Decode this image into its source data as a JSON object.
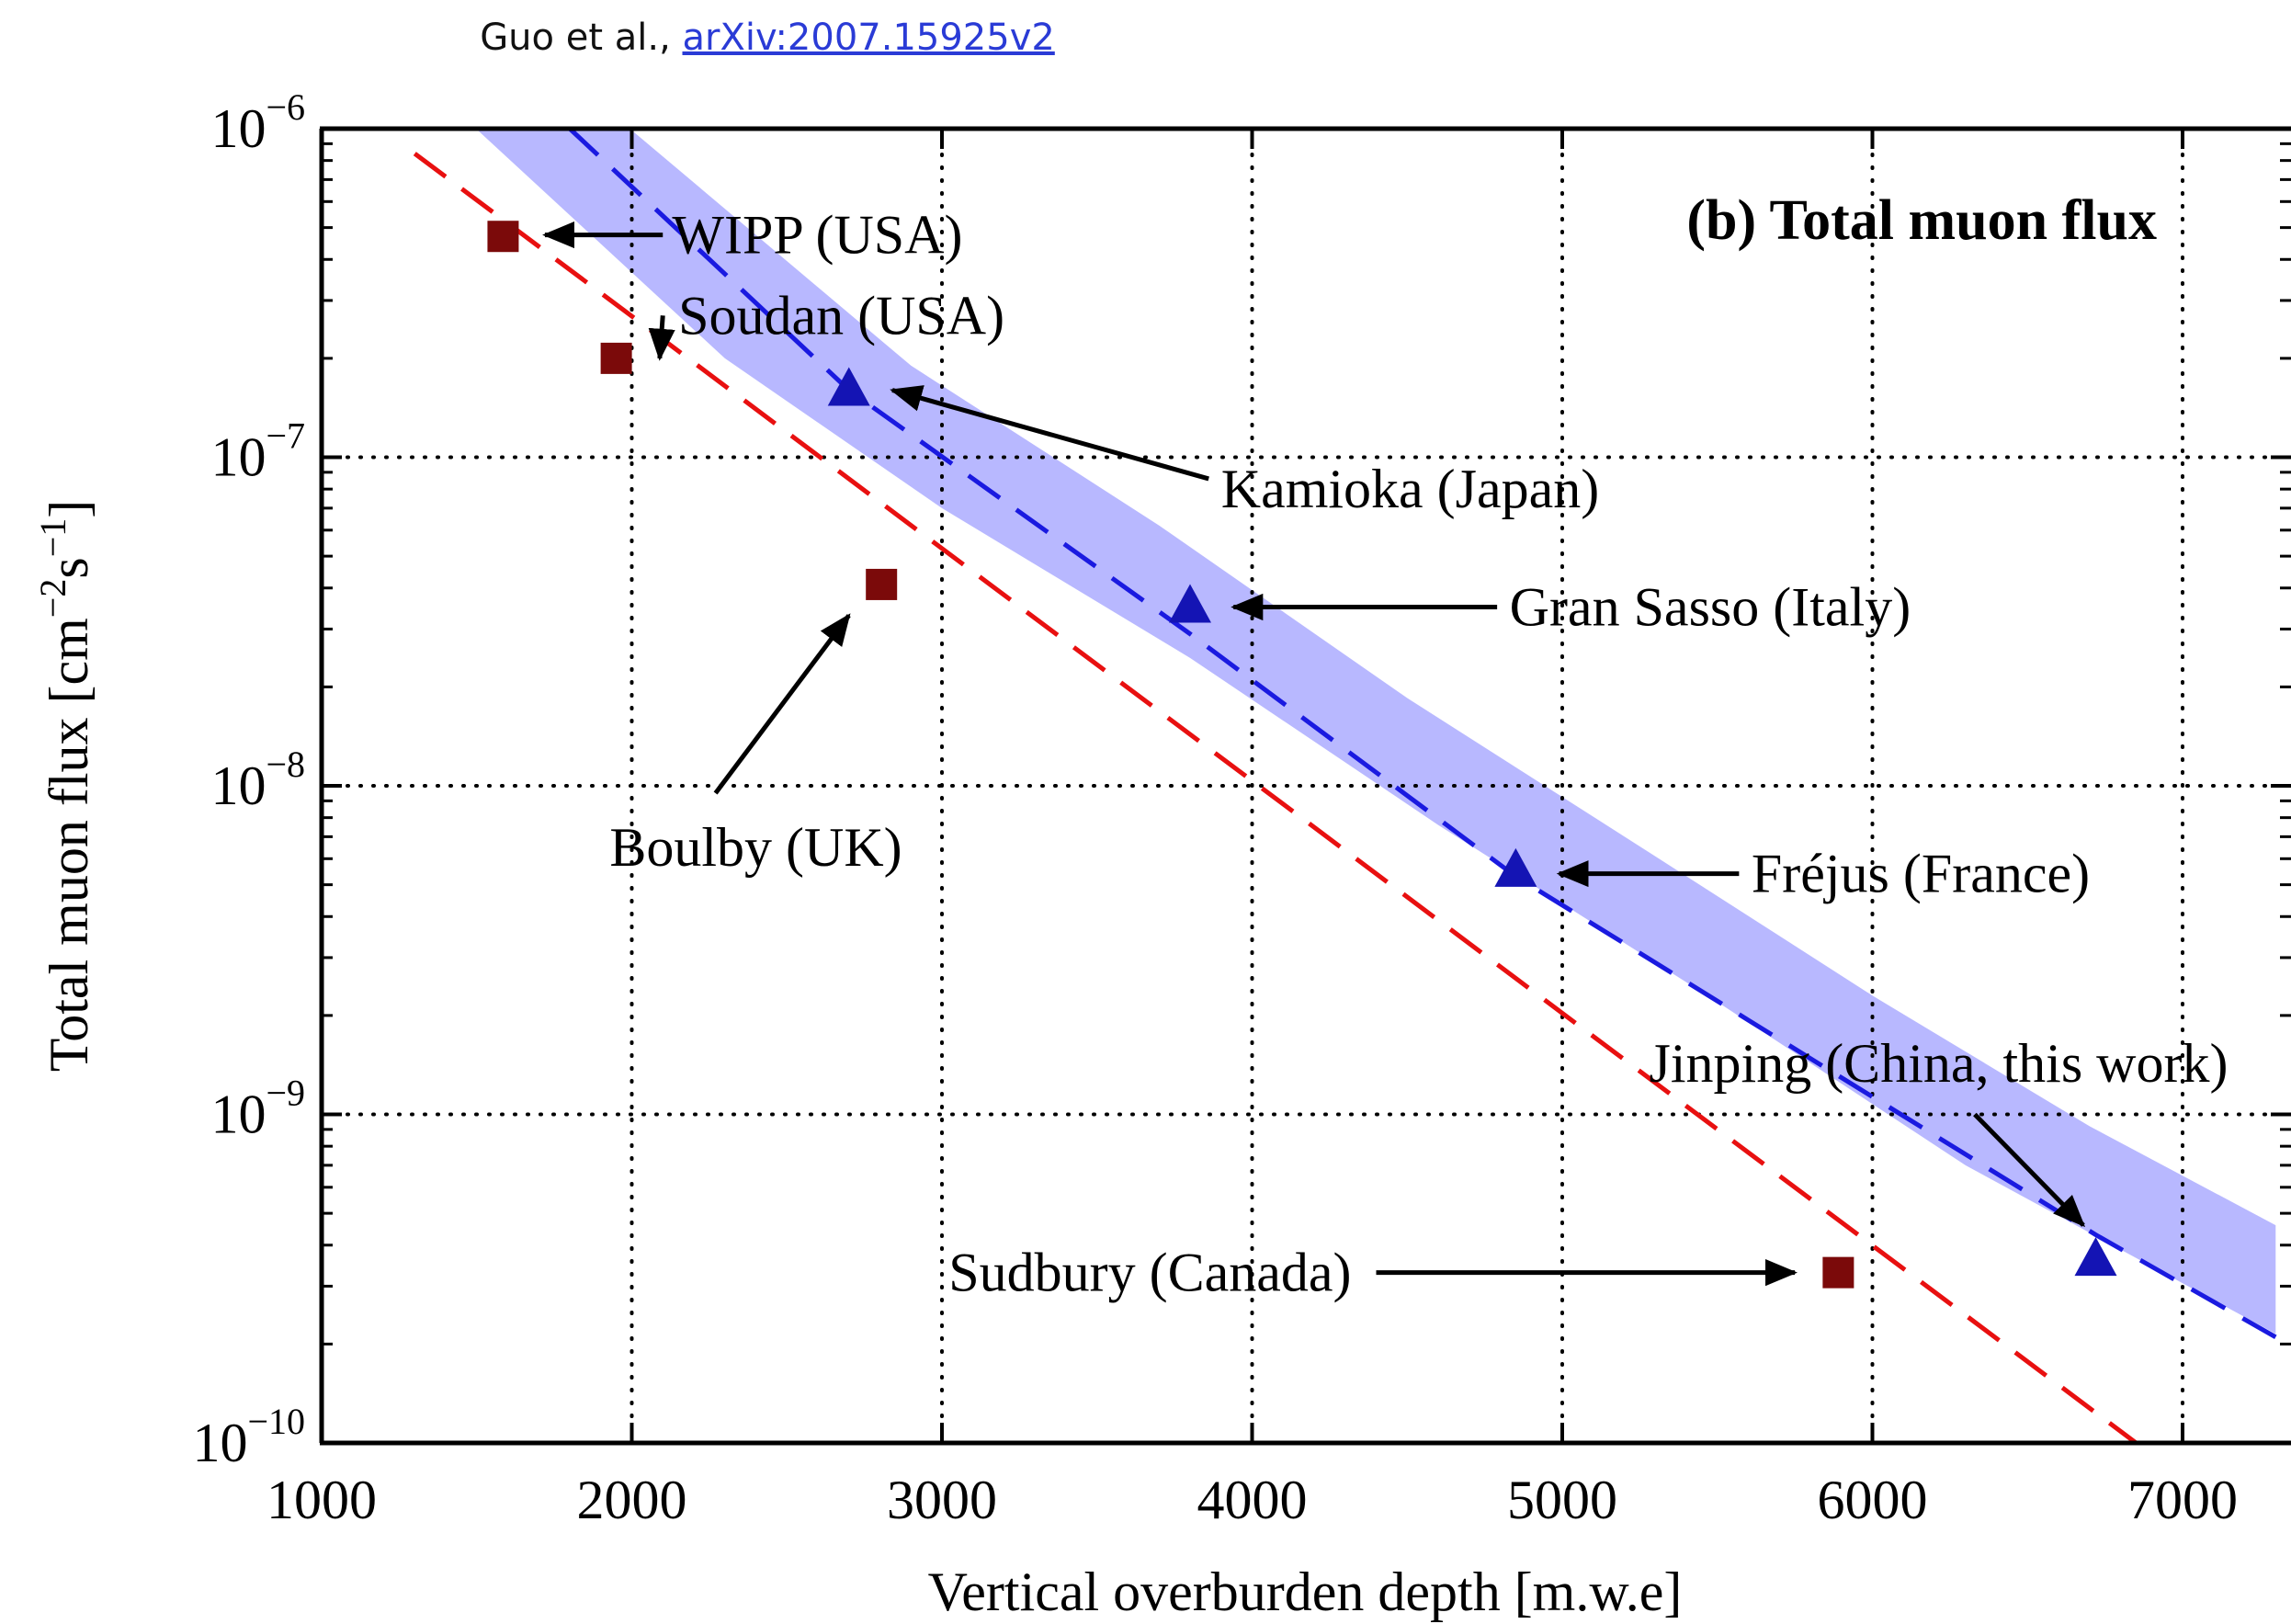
{
  "header": {
    "citation_prefix": "Guo et al., ",
    "citation_link": "arXiv:2007.15925v2"
  },
  "chart_data": {
    "type": "scatter",
    "title": "(b) Total muon flux",
    "xlabel": "Vertical overburden depth [m.w.e]",
    "ylabel_prefix": "Total muon flux [cm",
    "ylabel_exp1": "−2",
    "ylabel_mid": "s",
    "ylabel_exp2": "−1",
    "ylabel_suffix": "]",
    "xlim": [
      1000,
      7300
    ],
    "ylim": [
      1e-10,
      1e-06
    ],
    "yscale": "log",
    "grid": true,
    "x_ticks": [
      1000,
      2000,
      3000,
      4000,
      5000,
      6000,
      7000
    ],
    "x_tick_labels": [
      "1000",
      "2000",
      "3000",
      "4000",
      "5000",
      "6000",
      "7000"
    ],
    "y_ticks": [
      {
        "value": 1e-10,
        "base": "10",
        "exp": "−10"
      },
      {
        "value": 1e-09,
        "base": "10",
        "exp": "−9"
      },
      {
        "value": 1e-08,
        "base": "10",
        "exp": "−8"
      },
      {
        "value": 1e-07,
        "base": "10",
        "exp": "−7"
      },
      {
        "value": 1e-06,
        "base": "10",
        "exp": "−6"
      }
    ],
    "series": [
      {
        "marker": "square",
        "color": "#7b0a0a",
        "points": [
          {
            "label": "WIPP (USA)",
            "x": 1585,
            "y": 4.7e-07
          },
          {
            "label": "Soudan (USA)",
            "x": 1950,
            "y": 2e-07
          },
          {
            "label": "Boulby (UK)",
            "x": 2805,
            "y": 4.1e-08
          },
          {
            "label": "Sudbury (Canada)",
            "x": 5890,
            "y": 3.3e-10
          }
        ]
      },
      {
        "marker": "triangle",
        "color": "#1414b4",
        "points": [
          {
            "label": "Kamioka (Japan)",
            "x": 2700,
            "y": 1.6e-07
          },
          {
            "label": "Gran Sasso (Italy)",
            "x": 3800,
            "y": 3.5e-08
          },
          {
            "label": "Fréjus (France)",
            "x": 4850,
            "y": 5.5e-09
          },
          {
            "label": "Jinping (China, this work)",
            "x": 6720,
            "y": 3.6e-10
          }
        ]
      }
    ],
    "fit_lines": [
      {
        "color": "#e81010",
        "style": "dashed",
        "points": [
          [
            1300,
            8.4e-07
          ],
          [
            6850,
            1e-10
          ]
        ]
      },
      {
        "color": "#1a1ae0",
        "style": "dashed",
        "points": [
          [
            1800,
            1e-06
          ],
          [
            2700,
            1.6e-07
          ],
          [
            3800,
            2.9e-08
          ],
          [
            4850,
            5.3e-09
          ],
          [
            6720,
            4.3e-10
          ],
          [
            7300,
            2.1e-10
          ]
        ]
      }
    ],
    "band": {
      "color": "#b8b8ff",
      "upper": [
        [
          1810,
          1.4e-06
        ],
        [
          2900,
          1.9e-07
        ],
        [
          3700,
          6.2e-08
        ],
        [
          4500,
          1.85e-08
        ],
        [
          5300,
          6.1e-09
        ],
        [
          6000,
          2.3e-09
        ],
        [
          6700,
          9.2e-10
        ],
        [
          7300,
          4.6e-10
        ]
      ],
      "lower": [
        [
          1330,
          1.4e-06
        ],
        [
          2300,
          2e-07
        ],
        [
          3000,
          7e-08
        ],
        [
          3800,
          2.45e-08
        ],
        [
          4600,
          7.6e-09
        ],
        [
          5500,
          2.2e-09
        ],
        [
          6300,
          7e-10
        ],
        [
          7300,
          2.15e-10
        ]
      ]
    },
    "annotations": [
      {
        "text": "WIPP (USA)",
        "label_x": 2130,
        "label_y": 4.75e-07,
        "anchor": "start",
        "arrow_from": [
          2100,
          4.75e-07
        ],
        "arrow_to": [
          1720,
          4.75e-07
        ]
      },
      {
        "text": "Soudan (USA)",
        "label_x": 2150,
        "label_y": 2.7e-07,
        "anchor": "start",
        "arrow_from": [
          2100,
          2.7e-07
        ],
        "arrow_to": [
          2090,
          2e-07
        ]
      },
      {
        "text": "Kamioka (Japan)",
        "label_x": 3900,
        "label_y": 8e-08,
        "anchor": "start",
        "arrow_from": [
          3860,
          8.6e-08
        ],
        "arrow_to": [
          2840,
          1.6e-07
        ]
      },
      {
        "text": "Gran Sasso (Italy)",
        "label_x": 4830,
        "label_y": 3.5e-08,
        "anchor": "start",
        "arrow_from": [
          4790,
          3.5e-08
        ],
        "arrow_to": [
          3940,
          3.5e-08
        ]
      },
      {
        "text": "Boulby (UK)",
        "label_x": 2400,
        "label_y": 6.5e-09,
        "anchor": "middle",
        "arrow_from": [
          2270,
          9.5e-09
        ],
        "arrow_to": [
          2700,
          3.3e-08
        ]
      },
      {
        "text": "Fréjus (France)",
        "label_x": 5610,
        "label_y": 5.4e-09,
        "anchor": "start",
        "arrow_from": [
          5570,
          5.4e-09
        ],
        "arrow_to": [
          4990,
          5.4e-09
        ]
      },
      {
        "text": "Jinping (China, this work)",
        "label_x": 5280,
        "label_y": 1.43e-09,
        "anchor": "start",
        "arrow_from": [
          6330,
          1e-09
        ],
        "arrow_to": [
          6680,
          4.6e-10
        ]
      },
      {
        "text": "Sudbury (Canada)",
        "label_x": 4320,
        "label_y": 3.3e-10,
        "anchor": "end",
        "arrow_from": [
          4400,
          3.3e-10
        ],
        "arrow_to": [
          5750,
          3.3e-10
        ]
      }
    ]
  }
}
